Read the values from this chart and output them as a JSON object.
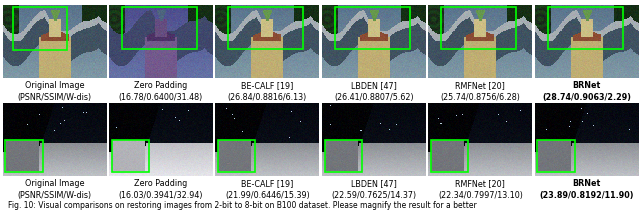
{
  "row1_labels": [
    "Original Image\n(PSNR/SSIM/W-dis)",
    "Zero Padding\n(16.78/0.6400/31.48)",
    "BE-CALF [19]\n(26.84/0.8816/6.13)",
    "LBDEN [47]\n(26.41/0.8807/5.62)",
    "RMFNet [20]\n(25.74/0.8756/6.28)",
    "BRNet\n(28.74/0.9063/2.29)"
  ],
  "row2_labels": [
    "Original Image\n(PSNR/SSIM/W-dis)",
    "Zero Padding\n(16.03/0.3941/32.94)",
    "BE-CALF [19]\n(21.99/0.6446/15.39)",
    "LBDEN [47]\n(22.59/0.7625/14.37)",
    "RMFNet [20]\n(22.34/0.7997/13.10)",
    "BRNet\n(23.89/0.8192/11.90)"
  ],
  "bold_last_row1": true,
  "bold_last_row2": true,
  "bg_color": "#ffffff",
  "text_color": "#000000",
  "label_fontsize": 5.8,
  "caption_fontsize": 5.5,
  "green_rect_color": "#00ff00",
  "caption": "Fig. 10: Visual comparisons on restoring images from 2-bit to 8-bit on B100 dataset. Please magnify the result for a better"
}
